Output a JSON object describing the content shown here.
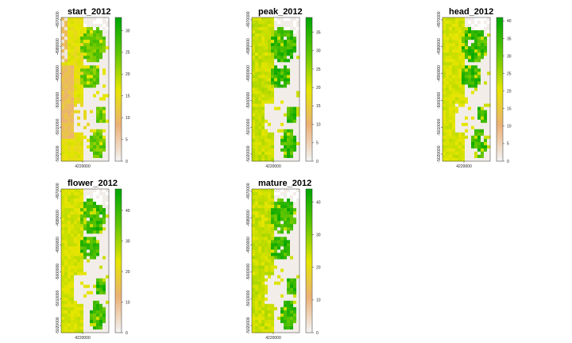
{
  "chart_data": [
    {
      "type": "heatmap",
      "title": "start_2012",
      "x_ticks": [
        "4220000"
      ],
      "y_ticks": [
        "-4970000",
        "-4980000",
        "-4990000",
        "-5000000",
        "-5010000",
        "-5020000"
      ],
      "legend_ticks": [
        0,
        5,
        10,
        15,
        20,
        25,
        30
      ],
      "legend_max": 33,
      "pattern": "start"
    },
    {
      "type": "heatmap",
      "title": "peak_2012",
      "x_ticks": [
        "4220000"
      ],
      "y_ticks": [
        "-4970000",
        "-4980000",
        "-4990000",
        "-5000000",
        "-5010000",
        "-5020000"
      ],
      "legend_ticks": [
        0,
        5,
        10,
        15,
        20,
        25,
        30,
        35
      ],
      "legend_max": 39,
      "pattern": "peak"
    },
    {
      "type": "heatmap",
      "title": "head_2012",
      "x_ticks": [
        "4220000"
      ],
      "y_ticks": [
        "-4970000",
        "-4980000",
        "-4990000",
        "-5000000",
        "-5010000",
        "-5020000"
      ],
      "legend_ticks": [
        0,
        5,
        10,
        15,
        20,
        25,
        30,
        35,
        40
      ],
      "legend_max": 41,
      "pattern": "head"
    },
    {
      "type": "heatmap",
      "title": "flower_2012",
      "x_ticks": [
        "4220000"
      ],
      "y_ticks": [
        "-4970000",
        "-4980000",
        "-4990000",
        "-5000000",
        "-5010000",
        "-5020000"
      ],
      "legend_ticks": [
        0,
        10,
        20,
        30,
        40
      ],
      "legend_max": 47,
      "pattern": "flower"
    },
    {
      "type": "heatmap",
      "title": "mature_2012",
      "x_ticks": [
        "4220000"
      ],
      "y_ticks": [
        "-4970000",
        "-4980000",
        "-4990000",
        "-5000000",
        "-5010000",
        "-5020000"
      ],
      "legend_ticks": [
        0,
        10,
        20,
        30,
        40
      ],
      "legend_max": 44,
      "pattern": "mature"
    }
  ],
  "colors": {
    "ramp": [
      "#f2f2f2",
      "#ecb176",
      "#e6e600",
      "#63c600",
      "#00a600"
    ],
    "na": "#ffffff"
  }
}
